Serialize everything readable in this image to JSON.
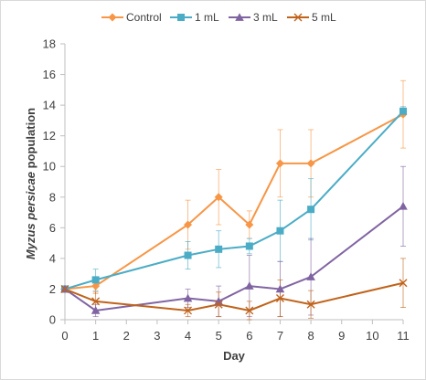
{
  "chart_data": {
    "type": "line",
    "title": "",
    "xlabel": "Day",
    "ylabel_italic": "Myzus persicae",
    "ylabel_rest": " population",
    "x_ticks": [
      0,
      1,
      2,
      3,
      4,
      5,
      6,
      7,
      8,
      9,
      10,
      11
    ],
    "y_ticks": [
      0,
      2,
      4,
      6,
      8,
      10,
      12,
      14,
      16,
      18
    ],
    "xlim": [
      0,
      11
    ],
    "ylim": [
      0,
      18
    ],
    "grid": false,
    "legend_position": "top",
    "series": [
      {
        "name": "Control",
        "color": "#F79646",
        "marker": "diamond",
        "x": [
          0,
          1,
          4,
          5,
          6,
          7,
          8,
          11
        ],
        "y": [
          2.0,
          2.2,
          6.2,
          8.0,
          6.2,
          10.2,
          10.2,
          13.4
        ],
        "err": [
          0.2,
          0.5,
          1.6,
          1.8,
          0.9,
          2.2,
          2.2,
          2.2
        ]
      },
      {
        "name": "1 mL",
        "color": "#4BACC6",
        "marker": "square",
        "x": [
          0,
          1,
          4,
          5,
          6,
          7,
          8,
          11
        ],
        "y": [
          2.0,
          2.6,
          4.2,
          4.6,
          4.8,
          5.8,
          7.2,
          13.6
        ],
        "err": [
          0.2,
          0.7,
          0.9,
          1.2,
          0.5,
          2.0,
          2.0,
          0.3
        ]
      },
      {
        "name": "3 mL",
        "color": "#8064A2",
        "marker": "triangle",
        "x": [
          0,
          1,
          4,
          5,
          6,
          7,
          8,
          11
        ],
        "y": [
          2.0,
          0.6,
          1.4,
          1.2,
          2.2,
          2.0,
          2.8,
          7.4
        ],
        "err": [
          0.2,
          0.4,
          0.6,
          1.0,
          2.0,
          1.8,
          2.5,
          2.6
        ]
      },
      {
        "name": "5 mL",
        "color": "#C0631B",
        "marker": "x",
        "x": [
          0,
          1,
          4,
          5,
          6,
          7,
          8,
          11
        ],
        "y": [
          2.0,
          1.2,
          0.6,
          1.0,
          0.6,
          1.4,
          1.0,
          2.4
        ],
        "err": [
          0.2,
          0.6,
          0.4,
          0.8,
          0.6,
          1.2,
          0.9,
          1.6
        ]
      }
    ]
  }
}
